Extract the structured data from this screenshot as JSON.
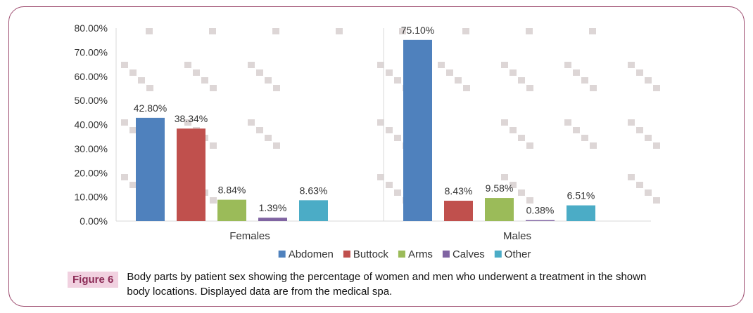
{
  "chart_data": {
    "type": "bar",
    "categories": [
      "Females",
      "Males"
    ],
    "series": [
      {
        "name": "Abdomen",
        "color": "#4f81bd",
        "values": [
          42.8,
          75.1
        ],
        "labels": [
          "42.80%",
          "75.10%"
        ]
      },
      {
        "name": "Buttock",
        "color": "#c0504d",
        "values": [
          38.34,
          8.43
        ],
        "labels": [
          "38.34%",
          "8.43%"
        ]
      },
      {
        "name": "Arms",
        "color": "#9bbb59",
        "values": [
          8.84,
          9.58
        ],
        "labels": [
          "8.84%",
          "9.58%"
        ]
      },
      {
        "name": "Calves",
        "color": "#8064a2",
        "values": [
          1.39,
          0.38
        ],
        "labels": [
          "1.39%",
          "0.38%"
        ]
      },
      {
        "name": "Other",
        "color": "#4bacc6",
        "values": [
          8.63,
          6.51
        ],
        "labels": [
          "8.63%",
          "6.51%"
        ]
      }
    ],
    "ylim": [
      0,
      80
    ],
    "yticks": [
      "0.00%",
      "10.00%",
      "20.00%",
      "30.00%",
      "40.00%",
      "50.00%",
      "60.00%",
      "70.00%",
      "80.00%"
    ],
    "legend_position": "bottom",
    "grid": false
  },
  "figure": {
    "label": "Figure 6",
    "caption_line1": "Body parts by patient sex showing the percentage of women and men who underwent a treatment in the shown",
    "caption_line2": "body locations. Displayed data are from the medical spa.",
    "frame_color": "#9c4a6d",
    "label_bg": "#f1d1e0",
    "label_color": "#8b2a55"
  }
}
